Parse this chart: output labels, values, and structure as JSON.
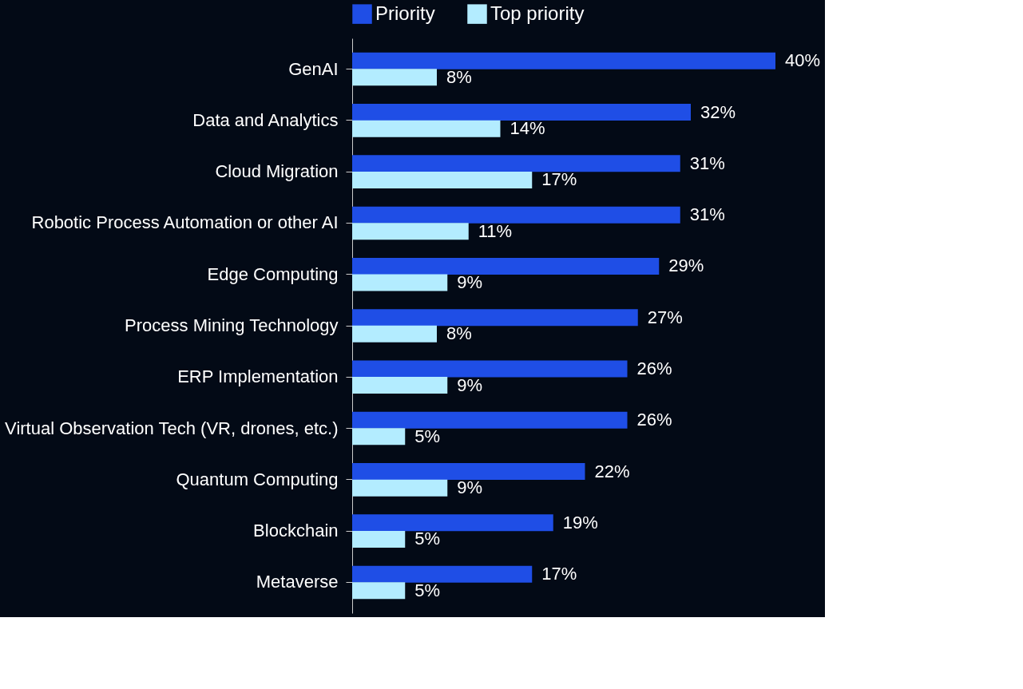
{
  "chart_data": {
    "type": "bar",
    "orientation": "horizontal",
    "data_labels": true,
    "legend": "top",
    "grid": false,
    "categories": [
      "GenAI",
      "Data and Analytics",
      "Cloud Migration",
      "Robotic Process Automation or other AI",
      "Edge Computing",
      "Process Mining Technology",
      "ERP Implementation",
      "Virtual Observation Tech (VR, drones, etc.)",
      "Quantum Computing",
      "Blockchain",
      "Metaverse"
    ],
    "series": [
      {
        "name": "Priority",
        "color": "#1f4ee6",
        "values": [
          40,
          32,
          31,
          31,
          29,
          27,
          26,
          26,
          22,
          19,
          17
        ],
        "value_labels": [
          "40%",
          "32%",
          "31%",
          "31%",
          "29%",
          "27%",
          "26%",
          "26%",
          "22%",
          "19%",
          "17%"
        ]
      },
      {
        "name": "Top priority",
        "color": "#b3ecff",
        "values": [
          8,
          14,
          17,
          11,
          9,
          8,
          9,
          5,
          9,
          5,
          5
        ],
        "value_labels": [
          "8%",
          "14%",
          "17%",
          "11%",
          "9%",
          "8%",
          "9%",
          "5%",
          "9%",
          "5%",
          "5%"
        ]
      }
    ]
  }
}
